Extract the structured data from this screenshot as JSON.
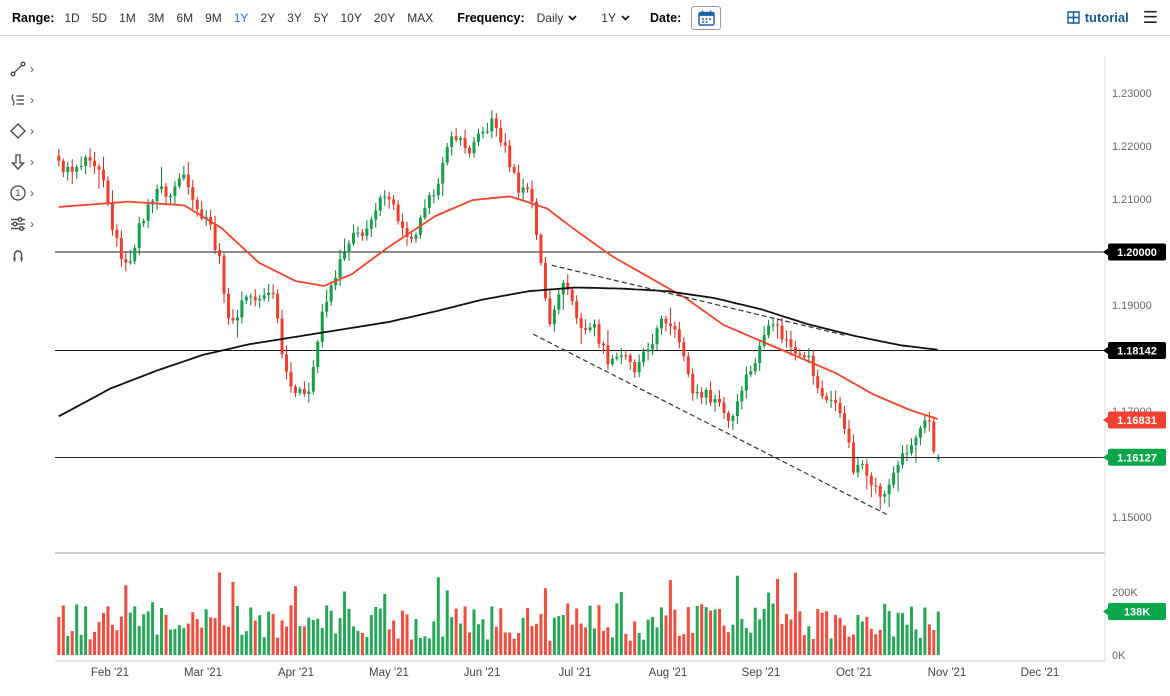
{
  "toolbar": {
    "range_label": "Range:",
    "range": {
      "options": [
        "1D",
        "5D",
        "1M",
        "3M",
        "6M",
        "9M",
        "1Y",
        "2Y",
        "3Y",
        "5Y",
        "10Y",
        "20Y",
        "MAX"
      ],
      "active": "1Y",
      "active_color": "#2b6bff"
    },
    "frequency_label": "Frequency:",
    "frequency_value": "Daily",
    "interval_value": "1Y",
    "date_label": "Date:",
    "brand": "tutorial",
    "menu_glyph": "☰"
  },
  "sidebar": {
    "chevron": "›",
    "tools": [
      {
        "name": "trend-line-tool"
      },
      {
        "name": "annotations-tool"
      },
      {
        "name": "shapes-tool"
      },
      {
        "name": "arrow-tool"
      },
      {
        "name": "number-annotation-tool",
        "glyph": "1"
      },
      {
        "name": "settings-sliders-tool"
      },
      {
        "name": "magnet-tool"
      }
    ]
  },
  "chart_data": {
    "type": "candlestick",
    "x_ticks": [
      {
        "t": 1,
        "label": "Feb '21"
      },
      {
        "t": 2,
        "label": "Mar '21"
      },
      {
        "t": 3,
        "label": "Apr '21"
      },
      {
        "t": 4,
        "label": "May '21"
      },
      {
        "t": 5,
        "label": "Jun '21"
      },
      {
        "t": 6,
        "label": "Jul '21"
      },
      {
        "t": 7,
        "label": "Aug '21"
      },
      {
        "t": 8,
        "label": "Sep '21"
      },
      {
        "t": 9,
        "label": "Oct '21"
      },
      {
        "t": 10,
        "label": "Nov '21"
      },
      {
        "t": 11,
        "label": "Dec '21"
      }
    ],
    "y_ticks": [
      {
        "p": 1.23,
        "label": "1.23000"
      },
      {
        "p": 1.22,
        "label": "1.22000"
      },
      {
        "p": 1.21,
        "label": "1.21000"
      },
      {
        "p": 1.19,
        "label": "1.19000"
      },
      {
        "p": 1.17,
        "label": "1.17000"
      },
      {
        "p": 1.15,
        "label": "1.15000"
      }
    ],
    "current_price": {
      "value": 1.16127,
      "label": "1.16127",
      "badge_color": "#0aa64a"
    },
    "horizontal_lines": [
      {
        "p": 1.2,
        "label": "1.20000",
        "badge_color": "#000000"
      },
      {
        "p": 1.18142,
        "label": "1.18142",
        "badge_color": "#000000"
      }
    ],
    "moving_averages": [
      {
        "name": "fast-ma",
        "color": "#f4442c",
        "last_label": "1.16831",
        "last_value": 1.16831,
        "badge_color": "#f1402f",
        "points": [
          [
            0.45,
            1.2085
          ],
          [
            1.2,
            1.2095
          ],
          [
            1.8,
            1.2088
          ],
          [
            2.2,
            1.2045
          ],
          [
            2.6,
            1.198
          ],
          [
            3.0,
            1.1945
          ],
          [
            3.3,
            1.1936
          ],
          [
            3.6,
            1.1958
          ],
          [
            4.0,
            1.201
          ],
          [
            4.5,
            1.2068
          ],
          [
            4.9,
            1.2098
          ],
          [
            5.3,
            1.2105
          ],
          [
            5.7,
            1.2082
          ],
          [
            6.0,
            1.2042
          ],
          [
            6.4,
            1.1992
          ],
          [
            6.8,
            1.1952
          ],
          [
            7.2,
            1.1912
          ],
          [
            7.6,
            1.1862
          ],
          [
            8.0,
            1.1832
          ],
          [
            8.4,
            1.1802
          ],
          [
            8.8,
            1.1772
          ],
          [
            9.2,
            1.1732
          ],
          [
            9.6,
            1.1702
          ],
          [
            9.93,
            1.16831
          ]
        ]
      },
      {
        "name": "slow-ma",
        "color": "#111111",
        "points": [
          [
            0.45,
            1.169
          ],
          [
            1.0,
            1.1742
          ],
          [
            1.5,
            1.1776
          ],
          [
            2.0,
            1.1806
          ],
          [
            2.5,
            1.1826
          ],
          [
            3.0,
            1.184
          ],
          [
            3.5,
            1.1854
          ],
          [
            4.0,
            1.1868
          ],
          [
            4.5,
            1.1888
          ],
          [
            5.0,
            1.191
          ],
          [
            5.5,
            1.1926
          ],
          [
            6.0,
            1.1933
          ],
          [
            6.5,
            1.1931
          ],
          [
            7.0,
            1.1926
          ],
          [
            7.5,
            1.1913
          ],
          [
            8.0,
            1.1892
          ],
          [
            8.5,
            1.1864
          ],
          [
            9.0,
            1.1842
          ],
          [
            9.5,
            1.1824
          ],
          [
            9.93,
            1.1815
          ]
        ]
      }
    ],
    "trendlines": [
      {
        "from": [
          5.75,
          1.1975
        ],
        "to": [
          8.9,
          1.1843
        ],
        "style": "dashed"
      },
      {
        "from": [
          5.55,
          1.1845
        ],
        "to": [
          9.35,
          1.1505
        ],
        "style": "dashed"
      }
    ],
    "candles": {
      "t_start": 0.45,
      "t_end": 9.93,
      "step": 0.048,
      "up_color": "#14a04a",
      "down_color": "#ef3e2e",
      "up_wick": "#0b7a37",
      "down_wick": "#c22a1d",
      "close_anchors": [
        [
          0.45,
          1.2165
        ],
        [
          0.6,
          1.2148
        ],
        [
          0.75,
          1.217
        ],
        [
          0.92,
          1.2138
        ],
        [
          1.05,
          1.2028
        ],
        [
          1.18,
          1.1968
        ],
        [
          1.32,
          1.2048
        ],
        [
          1.5,
          1.2122
        ],
        [
          1.65,
          1.2105
        ],
        [
          1.8,
          1.2158
        ],
        [
          1.93,
          1.2078
        ],
        [
          2.05,
          1.2068
        ],
        [
          2.18,
          1.198
        ],
        [
          2.3,
          1.1852
        ],
        [
          2.45,
          1.1922
        ],
        [
          2.6,
          1.1905
        ],
        [
          2.75,
          1.1932
        ],
        [
          2.88,
          1.1782
        ],
        [
          3.02,
          1.1728
        ],
        [
          3.15,
          1.1748
        ],
        [
          3.28,
          1.1878
        ],
        [
          3.45,
          1.1972
        ],
        [
          3.62,
          1.2028
        ],
        [
          3.8,
          1.2048
        ],
        [
          3.97,
          1.2122
        ],
        [
          4.1,
          1.2062
        ],
        [
          4.22,
          1.2008
        ],
        [
          4.38,
          1.2072
        ],
        [
          4.55,
          1.2148
        ],
        [
          4.7,
          1.2228
        ],
        [
          4.85,
          1.2188
        ],
        [
          5.0,
          1.2222
        ],
        [
          5.12,
          1.2248
        ],
        [
          5.25,
          1.2192
        ],
        [
          5.4,
          1.2118
        ],
        [
          5.52,
          1.2122
        ],
        [
          5.62,
          1.1992
        ],
        [
          5.72,
          1.1862
        ],
        [
          5.82,
          1.1928
        ],
        [
          5.92,
          1.1938
        ],
        [
          6.05,
          1.1855
        ],
        [
          6.2,
          1.1862
        ],
        [
          6.35,
          1.1798
        ],
        [
          6.5,
          1.1808
        ],
        [
          6.65,
          1.1772
        ],
        [
          6.8,
          1.1822
        ],
        [
          6.95,
          1.1872
        ],
        [
          7.1,
          1.1858
        ],
        [
          7.25,
          1.1738
        ],
        [
          7.4,
          1.1732
        ],
        [
          7.55,
          1.1718
        ],
        [
          7.67,
          1.1678
        ],
        [
          7.8,
          1.1752
        ],
        [
          7.95,
          1.1798
        ],
        [
          8.1,
          1.1882
        ],
        [
          8.22,
          1.1842
        ],
        [
          8.35,
          1.1818
        ],
        [
          8.5,
          1.1808
        ],
        [
          8.62,
          1.1732
        ],
        [
          8.75,
          1.1722
        ],
        [
          8.88,
          1.1692
        ],
        [
          9.0,
          1.1582
        ],
        [
          9.1,
          1.1602
        ],
        [
          9.22,
          1.1558
        ],
        [
          9.32,
          1.1532
        ],
        [
          9.45,
          1.1598
        ],
        [
          9.58,
          1.1622
        ],
        [
          9.7,
          1.1658
        ],
        [
          9.8,
          1.1682
        ],
        [
          9.88,
          1.16
        ],
        [
          9.93,
          1.16127
        ]
      ]
    },
    "volume": {
      "ticks": [
        {
          "v": 200,
          "label": "200K"
        },
        {
          "v": 0,
          "label": "0K"
        }
      ],
      "current": {
        "value": 138,
        "label": "138K",
        "badge_color": "#0aa64a"
      },
      "spikes": [
        {
          "t": 2.18,
          "v": 262
        },
        {
          "t": 2.32,
          "v": 232
        },
        {
          "t": 4.62,
          "v": 205
        },
        {
          "t": 5.66,
          "v": 212
        },
        {
          "t": 6.5,
          "v": 200
        },
        {
          "t": 8.1,
          "v": 198
        }
      ]
    }
  }
}
